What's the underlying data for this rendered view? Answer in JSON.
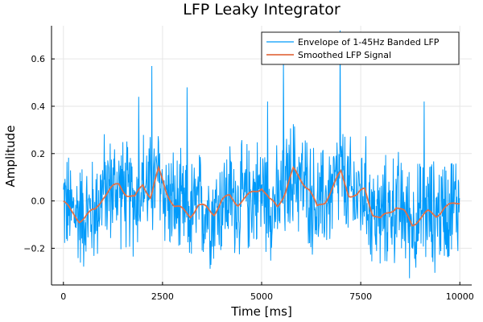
{
  "chart_data": {
    "type": "line",
    "title": "LFP Leaky Integrator",
    "xlabel": "Time [ms]",
    "ylabel": "Amplitude",
    "xlim": [
      -300,
      10300
    ],
    "ylim": [
      -0.355,
      0.74
    ],
    "xticks": [
      0,
      2500,
      5000,
      7500,
      10000
    ],
    "xtick_labels": [
      "0",
      "2500",
      "5000",
      "7500",
      "10000"
    ],
    "yticks": [
      -0.2,
      0.0,
      0.2,
      0.4,
      0.6
    ],
    "ytick_labels": [
      "−0.2",
      "0.0",
      "0.2",
      "0.4",
      "0.6"
    ],
    "grid": true,
    "legend_position": "top-right",
    "series": [
      {
        "name": "Envelope of 1-45Hz Banded LFP",
        "color": "#009AFA",
        "x": [
          0,
          200,
          400,
          600,
          800,
          1000,
          1200,
          1400,
          1600,
          1800,
          2000,
          2200,
          2400,
          2600,
          2800,
          3000,
          3200,
          3400,
          3600,
          3800,
          4000,
          4200,
          4400,
          4600,
          4800,
          5000,
          5200,
          5400,
          5600,
          5800,
          6000,
          6200,
          6400,
          6600,
          6800,
          7000,
          7200,
          7400,
          7600,
          7800,
          8000,
          8200,
          8400,
          8600,
          8800,
          9000,
          9200,
          9400,
          9600,
          9800,
          10000
        ],
        "y": [
          0.0,
          -0.05,
          -0.05,
          -0.06,
          -0.04,
          0.05,
          0.05,
          0.06,
          0.02,
          0.0,
          0.08,
          0.04,
          0.1,
          0.02,
          -0.02,
          -0.05,
          -0.06,
          -0.02,
          -0.03,
          -0.05,
          0.0,
          0.02,
          -0.01,
          0.01,
          0.03,
          0.05,
          0.0,
          -0.02,
          0.05,
          0.12,
          0.08,
          0.04,
          -0.03,
          0.0,
          0.05,
          0.1,
          0.03,
          0.02,
          0.04,
          -0.05,
          -0.08,
          -0.04,
          -0.02,
          -0.05,
          -0.09,
          -0.07,
          -0.05,
          -0.06,
          -0.03,
          -0.02,
          0.0
        ],
        "peaks": [
          {
            "x": 2230,
            "y": 0.57
          },
          {
            "x": 5550,
            "y": 0.6
          },
          {
            "x": 6980,
            "y": 0.72
          },
          {
            "x": 5150,
            "y": 0.42
          },
          {
            "x": 3120,
            "y": 0.48
          },
          {
            "x": 9100,
            "y": 0.42
          },
          {
            "x": 1900,
            "y": 0.44
          }
        ],
        "envelope_amplitude": 0.2
      },
      {
        "name": "Smoothed LFP Signal",
        "color": "#E26F46",
        "x": [
          0,
          200,
          400,
          600,
          800,
          1000,
          1200,
          1400,
          1600,
          1800,
          2000,
          2200,
          2400,
          2600,
          2800,
          3000,
          3200,
          3400,
          3600,
          3800,
          4000,
          4200,
          4400,
          4600,
          4800,
          5000,
          5200,
          5400,
          5600,
          5800,
          6000,
          6200,
          6400,
          6600,
          6800,
          7000,
          7200,
          7400,
          7600,
          7800,
          8000,
          8200,
          8400,
          8600,
          8800,
          9000,
          9200,
          9400,
          9600,
          9800,
          10000
        ],
        "y": [
          0.0,
          -0.05,
          -0.08,
          -0.06,
          -0.04,
          0.02,
          0.05,
          0.07,
          0.03,
          0.01,
          0.07,
          0.02,
          0.13,
          0.04,
          -0.02,
          -0.04,
          -0.06,
          -0.02,
          -0.03,
          -0.05,
          0.0,
          0.02,
          -0.01,
          0.01,
          0.04,
          0.06,
          0.0,
          -0.02,
          0.04,
          0.13,
          0.09,
          0.05,
          -0.03,
          0.0,
          0.06,
          0.12,
          0.03,
          0.02,
          0.05,
          -0.05,
          -0.08,
          -0.05,
          -0.02,
          -0.05,
          -0.1,
          -0.07,
          -0.05,
          -0.06,
          -0.03,
          -0.02,
          0.0
        ]
      }
    ]
  }
}
